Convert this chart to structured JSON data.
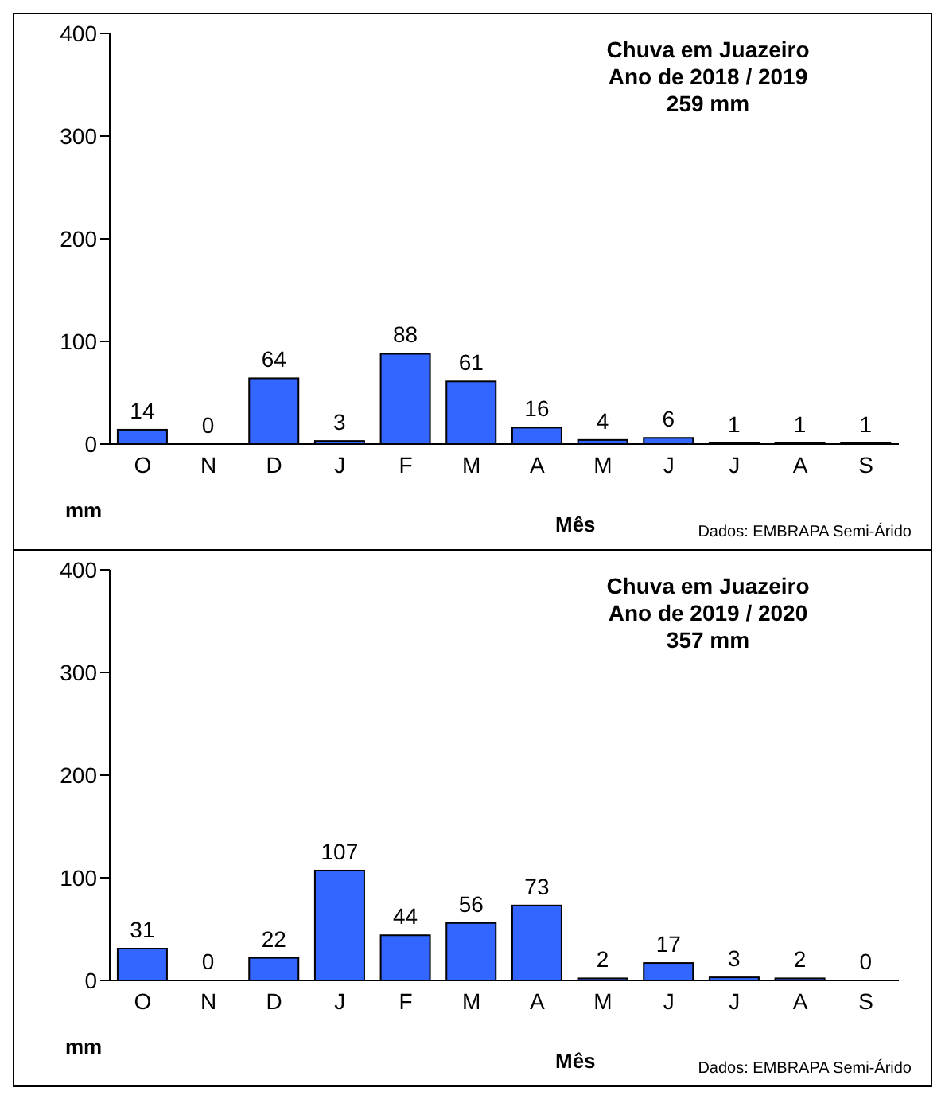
{
  "chart_data": [
    {
      "type": "bar",
      "title": "Chuva em Juazeiro",
      "subtitle": "Ano de 2018 / 2019",
      "annotations": [
        "259 mm",
        "Dados: EMBRAPA  Semi-Árido"
      ],
      "xlabel": "Mês",
      "ylabel": "mm",
      "categories": [
        "O",
        "N",
        "D",
        "J",
        "F",
        "M",
        "A",
        "M",
        "J",
        "J",
        "A",
        "S"
      ],
      "values": [
        14,
        0,
        64,
        3,
        88,
        61,
        16,
        4,
        6,
        1,
        1,
        1
      ],
      "color": "#3366ff",
      "ylim": [
        0,
        400
      ],
      "yticks": [
        0,
        100,
        200,
        300,
        400
      ],
      "grid": false,
      "data_labels": true
    },
    {
      "type": "bar",
      "title": "Chuva em Juazeiro",
      "subtitle": "Ano de 2019 / 2020",
      "annotations": [
        "357 mm",
        "Dados: EMBRAPA  Semi-Árido"
      ],
      "xlabel": "Mês",
      "ylabel": "mm",
      "categories": [
        "O",
        "N",
        "D",
        "J",
        "F",
        "M",
        "A",
        "M",
        "J",
        "J",
        "A",
        "S"
      ],
      "values": [
        31,
        0,
        22,
        107,
        44,
        56,
        73,
        2,
        17,
        3,
        2,
        0
      ],
      "color": "#3366ff",
      "ylim": [
        0,
        400
      ],
      "yticks": [
        0,
        100,
        200,
        300,
        400
      ],
      "grid": false,
      "data_labels": true
    }
  ]
}
